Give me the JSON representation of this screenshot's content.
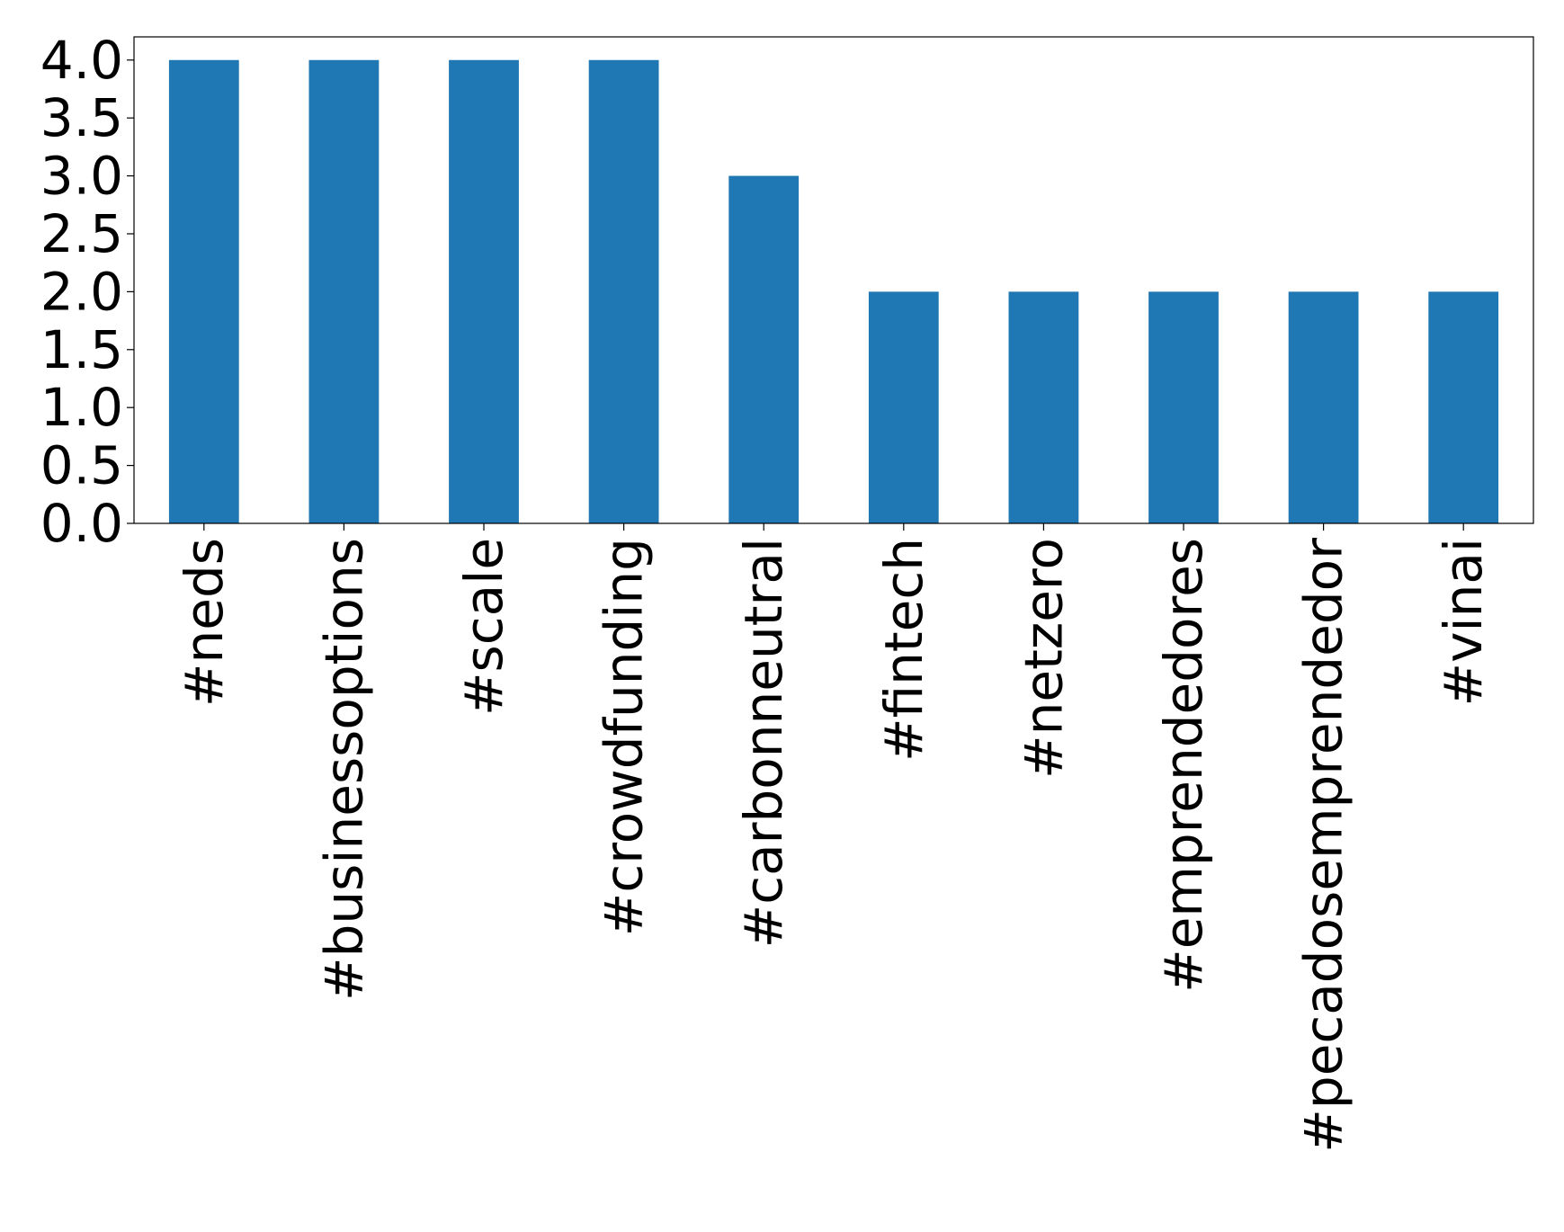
{
  "chart_data": {
    "type": "bar",
    "title": "",
    "xlabel": "",
    "ylabel": "",
    "categories": [
      "#neds",
      "#businessoptions",
      "#scale",
      "#crowdfunding",
      "#carbonneutral",
      "#fintech",
      "#netzero",
      "#emprendedores",
      "#pecadosemprendedor",
      "#vinai"
    ],
    "values": [
      4,
      4,
      4,
      4,
      3,
      2,
      2,
      2,
      2,
      2
    ],
    "ylim": [
      0,
      4.2
    ],
    "yticks": [
      "0.0",
      "0.5",
      "1.0",
      "1.5",
      "2.0",
      "2.5",
      "3.0",
      "3.5",
      "4.0"
    ],
    "grid": false,
    "legend": "none",
    "bar_color": "#1f77b4"
  }
}
